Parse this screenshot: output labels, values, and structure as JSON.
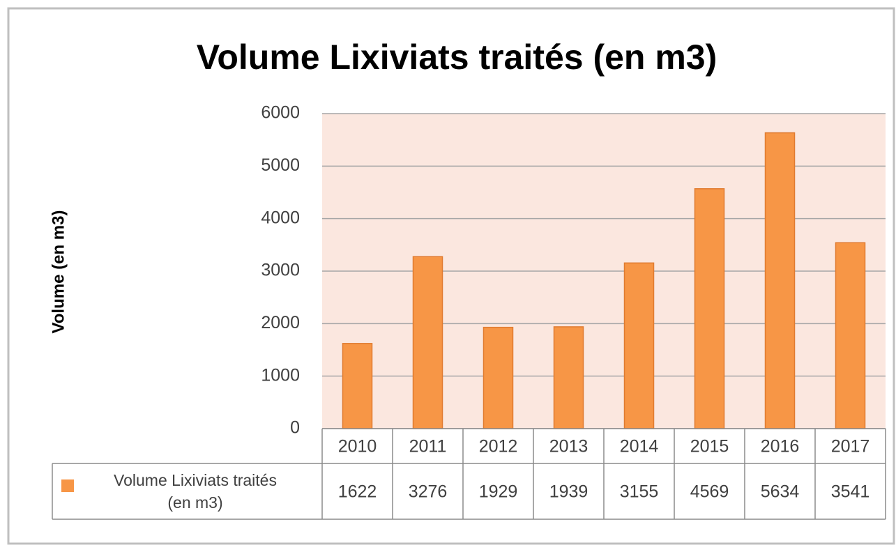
{
  "chart_data": {
    "type": "bar",
    "title": "Volume Lixiviats traités (en m3)",
    "y_axis_label": "Volume (en m3)",
    "categories": [
      "2010",
      "2011",
      "2012",
      "2013",
      "2014",
      "2015",
      "2016",
      "2017"
    ],
    "series": [
      {
        "name": "Volume Lixiviats traités (en m3)",
        "color": "#f79646",
        "values": [
          1622,
          3276,
          1929,
          1939,
          3155,
          4569,
          5634,
          3541
        ]
      }
    ],
    "ylim": [
      0,
      6000
    ],
    "yticks": [
      0,
      1000,
      2000,
      3000,
      4000,
      5000,
      6000
    ],
    "grid": true,
    "plot_background": "#fbe7df"
  }
}
